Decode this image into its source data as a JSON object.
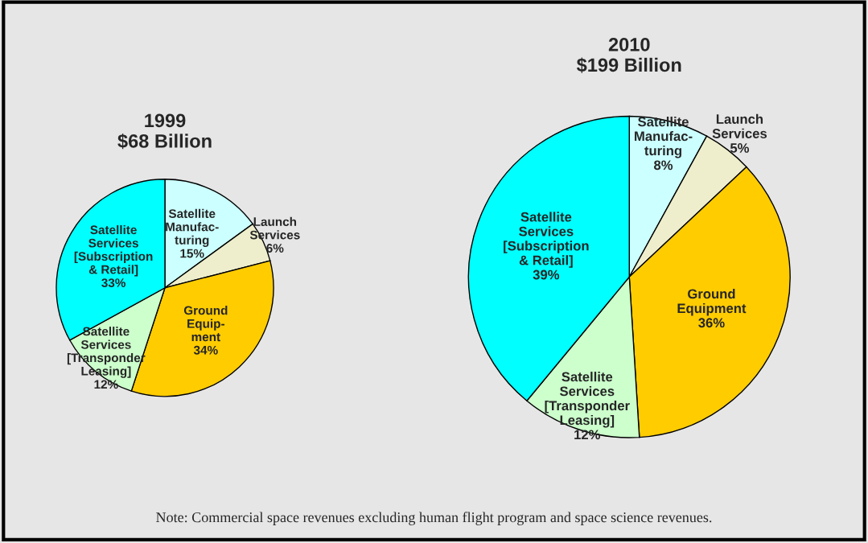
{
  "chart_data": [
    {
      "type": "pie",
      "title": "1999\n$68 Billion",
      "categories": [
        "Satellite\nManufac-\nturing",
        "Launch\nServices",
        "Ground\nEquip-\nment",
        "Satellite\nServices\n[Transponder\nLeasing]",
        "Satellite\nServices\n[Subscription\n& Retail]"
      ],
      "values": [
        15,
        6,
        34,
        12,
        33
      ],
      "colors": [
        "#ccffff",
        "#eeeecc",
        "#ffcc00",
        "#ccffcc",
        "#00ffff"
      ],
      "value_labels": [
        "15%",
        "6%",
        "34%",
        "12%",
        "33%"
      ]
    },
    {
      "type": "pie",
      "title": "2010\n$199 Billion",
      "categories": [
        "Satellite\nManufac-\nturing",
        "Launch\nServices",
        "Ground\nEquipment",
        "Satellite\nServices\n[Transponder\nLeasing]",
        "Satellite\nServices\n[Subscription\n& Retail]"
      ],
      "values": [
        8,
        5,
        36,
        12,
        39
      ],
      "colors": [
        "#ccffff",
        "#eeeecc",
        "#ffcc00",
        "#ccffcc",
        "#00ffff"
      ],
      "value_labels": [
        "8%",
        "5%",
        "36%",
        "12%",
        "39%"
      ],
      "annotations": [
        "Note: Commercial space revenues excluding human flight program and space science revenues."
      ]
    }
  ]
}
